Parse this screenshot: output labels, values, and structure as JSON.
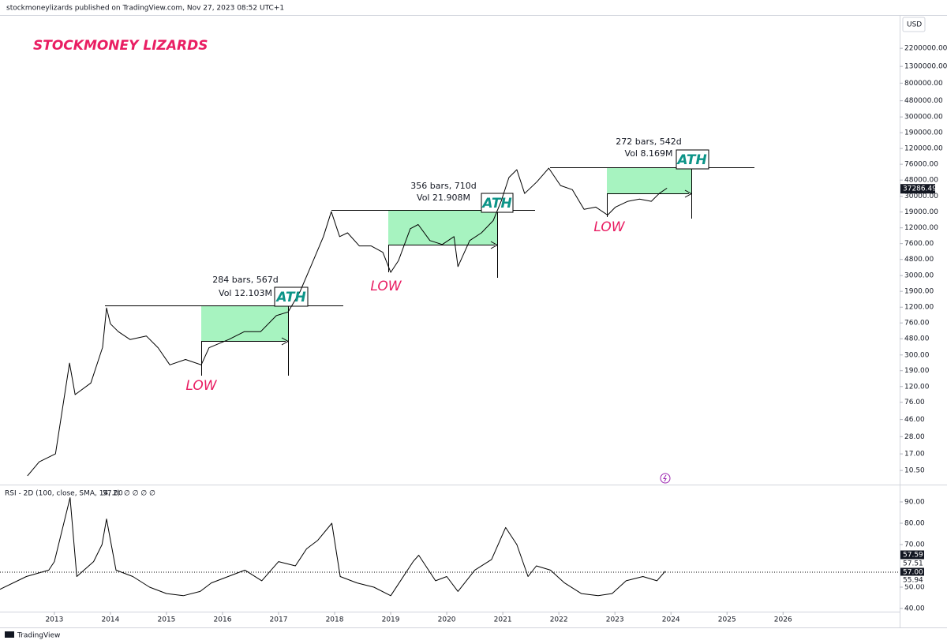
{
  "header": {
    "publisher": "stockmoneylizards published on TradingView.com, Nov 27, 2023 08:52 UTC+1",
    "brand": "STOCKMONEY LIZARDS",
    "currency": "USD",
    "footer": "TradingView"
  },
  "chart_data": [
    {
      "type": "line",
      "log_scale": true,
      "x": [
        2012.52,
        2012.73,
        2013.02,
        2013.27,
        2013.37,
        2013.65,
        2013.86,
        2013.93,
        2014.0,
        2014.14,
        2014.35,
        2014.64,
        2014.85,
        2015.06,
        2015.34,
        2015.62,
        2015.76,
        2016.11,
        2016.39,
        2016.68,
        2016.96,
        2017.17,
        2017.38,
        2017.59,
        2017.8,
        2017.94,
        2018.09,
        2018.23,
        2018.44,
        2018.65,
        2018.86,
        2019.0,
        2019.14,
        2019.35,
        2019.49,
        2019.7,
        2019.92,
        2020.13,
        2020.2,
        2020.41,
        2020.62,
        2020.83,
        2020.97,
        2021.11,
        2021.25,
        2021.39,
        2021.61,
        2021.82,
        2022.03,
        2022.24,
        2022.45,
        2022.66,
        2022.87,
        2023.01,
        2023.23,
        2023.44,
        2023.65,
        2023.79,
        2023.93
      ],
      "series": [
        {
          "color": "#000000",
          "values": [
            9,
            13.5,
            17,
            237,
            95,
            133,
            374,
            1175,
            740,
            590,
            470,
            520,
            370,
            225,
            263,
            225,
            370,
            470,
            590,
            590,
            940,
            1045,
            1870,
            4150,
            9300,
            19200,
            9300,
            10400,
            7100,
            7100,
            5900,
            3300,
            4650,
            11700,
            13200,
            8300,
            7400,
            9300,
            3900,
            8300,
            10400,
            14800,
            25900,
            51800,
            64900,
            32500,
            45700,
            67800,
            41000,
            36400,
            20500,
            21900,
            17400,
            21900,
            25900,
            27700,
            25900,
            32500,
            38000
          ]
        }
      ],
      "xlim": [
        2012.03,
        2028.08
      ],
      "ylim": [
        7.3,
        5650000
      ],
      "yticks": [
        {
          "value": 2200000,
          "label": "2200000.00"
        },
        {
          "value": 1300000,
          "label": "1300000.00"
        },
        {
          "value": 800000,
          "label": "800000.00"
        },
        {
          "value": 480000,
          "label": "480000.00"
        },
        {
          "value": 300000,
          "label": "300000.00"
        },
        {
          "value": 190000,
          "label": "190000.00"
        },
        {
          "value": 120000,
          "label": "120000.00"
        },
        {
          "value": 76000,
          "label": "76000.00"
        },
        {
          "value": 48000,
          "label": "48000.00"
        },
        {
          "value": 30000,
          "label": "30000.00"
        },
        {
          "value": 19000,
          "label": "19000.00"
        },
        {
          "value": 12000,
          "label": "12000.00"
        },
        {
          "value": 7600,
          "label": "7600.00"
        },
        {
          "value": 4800,
          "label": "4800.00"
        },
        {
          "value": 3000,
          "label": "3000.00"
        },
        {
          "value": 1900,
          "label": "1900.00"
        },
        {
          "value": 1200,
          "label": "1200.00"
        },
        {
          "value": 760,
          "label": "760.00"
        },
        {
          "value": 480,
          "label": "480.00"
        },
        {
          "value": 300,
          "label": "300.00"
        },
        {
          "value": 190,
          "label": "190.00"
        },
        {
          "value": 120,
          "label": "120.00"
        },
        {
          "value": 76,
          "label": "76.00"
        },
        {
          "value": 46,
          "label": "46.00"
        },
        {
          "value": 28,
          "label": "28.00"
        },
        {
          "value": 17,
          "label": "17.00"
        },
        {
          "value": 10.5,
          "label": "10.50"
        }
      ],
      "last_price": {
        "value": 37286.49,
        "label": "37286.49"
      },
      "annotations": [
        "284 bars, 567d",
        "Vol 12.103M",
        "ATH",
        "LOW",
        "356 bars, 710d",
        "Vol 21.908M",
        "ATH",
        "LOW",
        "272 bars, 542d",
        "Vol 8.169M",
        "ATH",
        "LOW"
      ]
    },
    {
      "type": "line",
      "legend": "RSI - 2D (100, close, SMA, 14, 2)",
      "legend_value": "57.00",
      "legend_extra": "∅ ∅ ∅ ∅",
      "x": [
        2012.03,
        2012.5,
        2012.9,
        2013.0,
        2013.28,
        2013.4,
        2013.7,
        2013.85,
        2013.93,
        2014.1,
        2014.4,
        2014.7,
        2015.0,
        2015.3,
        2015.6,
        2015.8,
        2016.1,
        2016.4,
        2016.7,
        2017.0,
        2017.3,
        2017.5,
        2017.7,
        2017.95,
        2018.1,
        2018.4,
        2018.7,
        2019.0,
        2019.4,
        2019.5,
        2019.8,
        2020.0,
        2020.2,
        2020.5,
        2020.8,
        2021.05,
        2021.25,
        2021.45,
        2021.6,
        2021.85,
        2022.1,
        2022.4,
        2022.7,
        2022.95,
        2023.2,
        2023.5,
        2023.75,
        2023.9
      ],
      "series": [
        {
          "color": "#000000",
          "values": [
            49,
            55,
            58,
            62,
            92,
            55,
            62,
            70,
            82,
            58,
            55,
            50,
            47,
            46,
            48,
            52,
            55,
            58,
            53,
            62,
            60,
            68,
            72,
            80,
            55,
            52,
            50,
            46,
            62,
            65,
            53,
            55,
            48,
            58,
            63,
            78,
            70,
            55,
            60,
            58,
            52,
            47,
            46,
            47,
            53,
            55,
            53,
            57.5
          ]
        }
      ],
      "reference_line": 57,
      "xlim": [
        2012.03,
        2028.08
      ],
      "ylim": [
        38.5,
        97.4
      ],
      "yticks": [
        {
          "value": 90,
          "label": "90.00"
        },
        {
          "value": 80,
          "label": "80.00"
        },
        {
          "value": 70,
          "label": "70.00"
        },
        {
          "value": 50,
          "label": "50.00"
        },
        {
          "value": 40,
          "label": "40.00"
        }
      ],
      "xticks": [
        2013,
        2014,
        2015,
        2016,
        2017,
        2018,
        2019,
        2020,
        2021,
        2022,
        2023,
        2024,
        2025,
        2026
      ],
      "markers": [
        {
          "value": 57.59,
          "label": "57.59"
        },
        {
          "value": 57.51,
          "label": "57.51"
        },
        {
          "value": 57,
          "label": "57.00"
        },
        {
          "value": 55.94,
          "label": "55.94"
        }
      ]
    }
  ]
}
